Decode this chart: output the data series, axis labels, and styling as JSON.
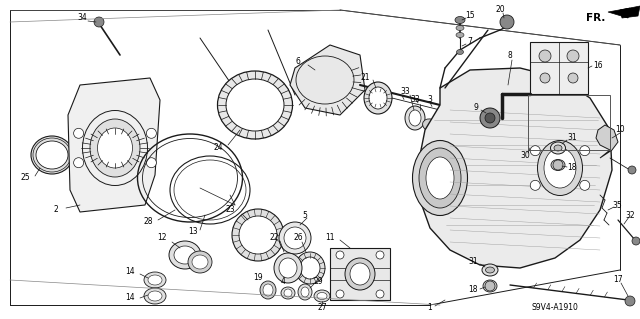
{
  "bg_color": "#ffffff",
  "line_color": "#1a1a1a",
  "diagram_code": "S9V4-A1910",
  "fr_label": "FR.",
  "figsize": [
    6.4,
    3.19
  ],
  "dpi": 100,
  "label_fs": 5.5,
  "code_fs": 5.5
}
